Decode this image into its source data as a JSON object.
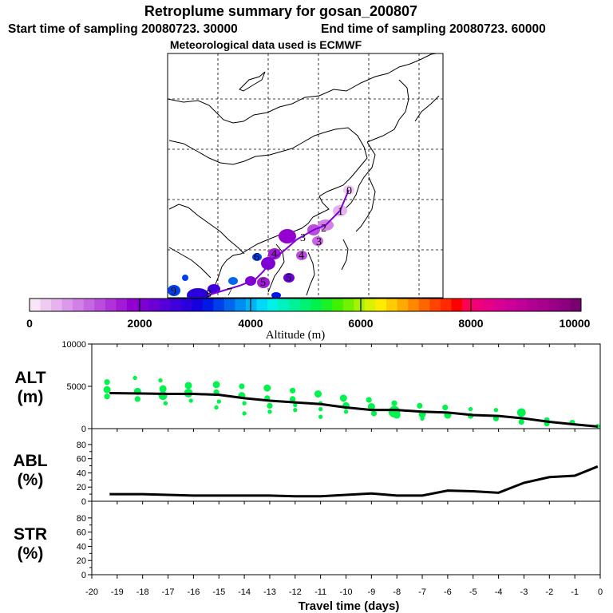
{
  "header": {
    "title": "Retroplume summary for gosan_200807",
    "start_sampling": "Start time of sampling 20080723. 30000",
    "end_sampling": "End time of sampling 20080723. 60000",
    "meteo": "Meteorological data used is ECMWF"
  },
  "colorbar": {
    "label": "Altitude (m)",
    "ticks": [
      "0",
      "2000",
      "4000",
      "6000",
      "8000",
      "10000"
    ],
    "colors": [
      "#f7e6f7",
      "#eeccf2",
      "#e6b3ee",
      "#dc99ea",
      "#d280e6",
      "#c766e2",
      "#bb4ddd",
      "#ae33d9",
      "#a11ad5",
      "#9400d1",
      "#7f00d3",
      "#6a00d6",
      "#5500d9",
      "#4000dc",
      "#2b00df",
      "#1600e2",
      "#0019e6",
      "#0040ea",
      "#0066ee",
      "#008df2",
      "#00b3f6",
      "#00daf9",
      "#00f2e6",
      "#00f2bf",
      "#00f299",
      "#00f273",
      "#00f24d",
      "#1af226",
      "#40f200",
      "#73f200",
      "#a6f200",
      "#d9f200",
      "#ffec00",
      "#ffcc00",
      "#ffaa00",
      "#ff8800",
      "#ff6600",
      "#ff4400",
      "#ff2a00",
      "#ff0000",
      "#ff0055",
      "#f20077",
      "#e60088",
      "#d90094",
      "#cc0099",
      "#bf0099",
      "#b30094",
      "#a6008d",
      "#990085",
      "#8c0080",
      "#7a0070"
    ]
  },
  "map": {
    "points": [
      {
        "label": "0",
        "color": "#e6b3ee"
      },
      {
        "label": "1",
        "color": "#dc99ea"
      },
      {
        "label": "2",
        "color": "#c766e2"
      },
      {
        "label": "3",
        "color": "#9400d1"
      },
      {
        "label": "3",
        "color": "#bb4ddd"
      },
      {
        "label": "4",
        "color": "#a11ad5"
      },
      {
        "label": "4",
        "color": "#bb4ddd"
      },
      {
        "label": "5",
        "color": "#7f00d3"
      },
      {
        "label": "5",
        "color": "#a11ad5"
      },
      {
        "label": "6",
        "color": "#0040ea"
      },
      {
        "label": "7",
        "color": "#2b00df"
      },
      {
        "label": "8",
        "color": "#4000dc"
      },
      {
        "label": "9",
        "color": "#0066ee"
      }
    ]
  },
  "chart_data": [
    {
      "type": "scatter",
      "panel": "ALT",
      "ylabel": "ALT\n(m)",
      "ylabel_lines": [
        "ALT",
        "(m)"
      ],
      "ylim": [
        0,
        10000
      ],
      "yticks": [
        "0",
        "5000",
        "10000"
      ],
      "xlim": [
        -20,
        0
      ],
      "mean_line": {
        "x": [
          -19.3,
          -18,
          -17,
          -16,
          -15,
          -14,
          -13,
          -12,
          -11,
          -10,
          -9,
          -8,
          -7,
          -6,
          -5,
          -4,
          -3,
          -2,
          -1,
          -0.1
        ],
        "y": [
          4200,
          4150,
          4100,
          4100,
          4000,
          3600,
          3300,
          3100,
          2900,
          2500,
          2200,
          2200,
          2000,
          1900,
          1600,
          1500,
          1200,
          800,
          500,
          250
        ]
      },
      "cluster_points": [
        {
          "x": -19.4,
          "y": 5500,
          "size": 4
        },
        {
          "x": -19.4,
          "y": 4600,
          "size": 5
        },
        {
          "x": -19.4,
          "y": 3800,
          "size": 4
        },
        {
          "x": -18.3,
          "y": 6000,
          "size": 3
        },
        {
          "x": -18.2,
          "y": 4400,
          "size": 5
        },
        {
          "x": -18.2,
          "y": 3500,
          "size": 4
        },
        {
          "x": -17.3,
          "y": 5700,
          "size": 3
        },
        {
          "x": -17.2,
          "y": 4700,
          "size": 5
        },
        {
          "x": -17.2,
          "y": 3900,
          "size": 6
        },
        {
          "x": -17.1,
          "y": 3000,
          "size": 3
        },
        {
          "x": -16.2,
          "y": 5100,
          "size": 5
        },
        {
          "x": -16.2,
          "y": 4200,
          "size": 6
        },
        {
          "x": -16.1,
          "y": 3300,
          "size": 3
        },
        {
          "x": -15.1,
          "y": 5200,
          "size": 5
        },
        {
          "x": -15.1,
          "y": 4300,
          "size": 4
        },
        {
          "x": -15.0,
          "y": 3200,
          "size": 3
        },
        {
          "x": -15.1,
          "y": 2500,
          "size": 3
        },
        {
          "x": -14.1,
          "y": 5000,
          "size": 4
        },
        {
          "x": -14.1,
          "y": 3900,
          "size": 5
        },
        {
          "x": -14.0,
          "y": 3000,
          "size": 3
        },
        {
          "x": -14.0,
          "y": 1800,
          "size": 3
        },
        {
          "x": -13.1,
          "y": 4800,
          "size": 5
        },
        {
          "x": -13.1,
          "y": 3600,
          "size": 4
        },
        {
          "x": -13.0,
          "y": 2700,
          "size": 4
        },
        {
          "x": -13.0,
          "y": 2000,
          "size": 3
        },
        {
          "x": -12.1,
          "y": 4500,
          "size": 4
        },
        {
          "x": -12.1,
          "y": 3500,
          "size": 4
        },
        {
          "x": -12.0,
          "y": 2800,
          "size": 3
        },
        {
          "x": -12.0,
          "y": 2200,
          "size": 3
        },
        {
          "x": -11.1,
          "y": 4100,
          "size": 5
        },
        {
          "x": -11.0,
          "y": 3000,
          "size": 3
        },
        {
          "x": -11.0,
          "y": 2300,
          "size": 3
        },
        {
          "x": -11.0,
          "y": 1400,
          "size": 3
        },
        {
          "x": -10.1,
          "y": 3600,
          "size": 5
        },
        {
          "x": -10.0,
          "y": 2700,
          "size": 5
        },
        {
          "x": -10.0,
          "y": 2000,
          "size": 3
        },
        {
          "x": -9.1,
          "y": 3400,
          "size": 4
        },
        {
          "x": -9.0,
          "y": 2600,
          "size": 5
        },
        {
          "x": -8.9,
          "y": 1800,
          "size": 4
        },
        {
          "x": -8.1,
          "y": 3000,
          "size": 4
        },
        {
          "x": -8.1,
          "y": 2000,
          "size": 8
        },
        {
          "x": -8.0,
          "y": 1600,
          "size": 5
        },
        {
          "x": -7.1,
          "y": 2700,
          "size": 4
        },
        {
          "x": -7.0,
          "y": 1700,
          "size": 5
        },
        {
          "x": -7.0,
          "y": 1200,
          "size": 3
        },
        {
          "x": -6.1,
          "y": 2500,
          "size": 4
        },
        {
          "x": -6.0,
          "y": 1600,
          "size": 5
        },
        {
          "x": -5.1,
          "y": 2300,
          "size": 3
        },
        {
          "x": -5.1,
          "y": 1500,
          "size": 4
        },
        {
          "x": -4.1,
          "y": 2200,
          "size": 3
        },
        {
          "x": -4.1,
          "y": 1200,
          "size": 4
        },
        {
          "x": -3.1,
          "y": 1900,
          "size": 6
        },
        {
          "x": -3.1,
          "y": 800,
          "size": 4
        },
        {
          "x": -2.1,
          "y": 1000,
          "size": 4
        },
        {
          "x": -2.1,
          "y": 600,
          "size": 4
        },
        {
          "x": -1.1,
          "y": 700,
          "size": 4
        },
        {
          "x": -0.1,
          "y": 300,
          "size": 3
        }
      ]
    },
    {
      "type": "line",
      "panel": "ABL",
      "ylabel": "ABL\n(%)",
      "ylabel_lines": [
        "ABL",
        "(%)"
      ],
      "ylim": [
        0,
        90
      ],
      "yticks": [
        "0",
        "20",
        "40",
        "60",
        "80"
      ],
      "xlim": [
        -20,
        0
      ],
      "x": [
        -19.3,
        -18,
        -17,
        -16,
        -15,
        -14,
        -13,
        -12,
        -11,
        -10,
        -9,
        -8,
        -7,
        -6,
        -5,
        -4,
        -3,
        -2,
        -1,
        -0.1
      ],
      "y": [
        10,
        10,
        9,
        8,
        8,
        8,
        8,
        7,
        7,
        9,
        11,
        8,
        8,
        15,
        14,
        12,
        26,
        34,
        36,
        49
      ]
    },
    {
      "type": "line",
      "panel": "STR",
      "ylabel": "STR\n(%)",
      "ylabel_lines": [
        "STR",
        "(%)"
      ],
      "ylim": [
        0,
        90
      ],
      "yticks": [
        "0",
        "20",
        "40",
        "60",
        "80"
      ],
      "xlim": [
        -20,
        0
      ],
      "x": [],
      "y": []
    }
  ],
  "xaxis": {
    "label": "Travel time (days)",
    "ticks": [
      "-20",
      "-19",
      "-18",
      "-17",
      "-16",
      "-15",
      "-14",
      "-13",
      "-12",
      "-11",
      "-10",
      "-9",
      "-8",
      "-7",
      "-6",
      "-5",
      "-4",
      "-3",
      "-2",
      "-1",
      "0"
    ]
  }
}
